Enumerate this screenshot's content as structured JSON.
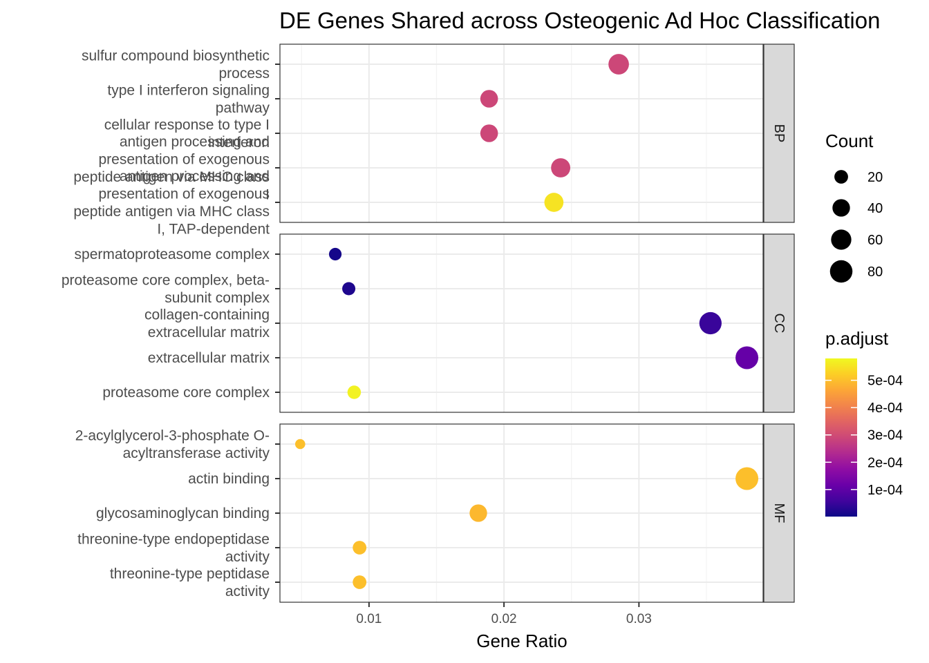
{
  "chart_data": {
    "type": "scatter",
    "title": "DE Genes Shared across Osteogenic Ad Hoc Classification",
    "xlabel": "Gene Ratio",
    "ylabel": "",
    "xlim": [
      0.0034,
      0.0392
    ],
    "x_ticks": [
      0.01,
      0.02,
      0.03
    ],
    "x_tick_labels": [
      "0.01",
      "0.02",
      "0.03"
    ],
    "grid": true,
    "facets": [
      {
        "name": "BP",
        "points": [
          {
            "term": "sulfur compound biosynthetic process",
            "label_lines": [
              "sulfur compound biosynthetic",
              "process"
            ],
            "x": 0.0285,
            "count": 62,
            "p_adjust": 0.00029
          },
          {
            "term": "type I interferon signaling pathway",
            "label_lines": [
              "type I interferon signaling",
              "pathway"
            ],
            "x": 0.0189,
            "count": 41,
            "p_adjust": 0.00029
          },
          {
            "term": "cellular response to type I interferon",
            "label_lines": [
              "cellular response to type I",
              "interferon"
            ],
            "x": 0.0189,
            "count": 41,
            "p_adjust": 0.00029
          },
          {
            "term": "antigen processing and presentation of exogenous peptide antigen via MHC class I",
            "label_lines": [
              "antigen processing and",
              "presentation of exogenous",
              "peptide antigen via MHC class",
              "I"
            ],
            "x": 0.0242,
            "count": 52,
            "p_adjust": 0.00029
          },
          {
            "term": "antigen processing and presentation of exogenous peptide antigen via MHC class I, TAP-dependent",
            "label_lines": [
              "antigen processing and",
              "presentation of exogenous",
              "peptide antigen via MHC class",
              "I, TAP-dependent"
            ],
            "x": 0.0237,
            "count": 51,
            "p_adjust": 0.00055
          }
        ]
      },
      {
        "name": "CC",
        "points": [
          {
            "term": "spermatoproteasome complex",
            "label_lines": [
              "spermatoproteasome complex"
            ],
            "x": 0.0075,
            "count": 16,
            "p_adjust": 1e-05
          },
          {
            "term": "proteasome core complex, beta-subunit complex",
            "label_lines": [
              "proteasome core complex, beta-",
              "subunit complex"
            ],
            "x": 0.0085,
            "count": 18,
            "p_adjust": 2e-05
          },
          {
            "term": "collagen-containing extracellular matrix",
            "label_lines": [
              "collagen-containing",
              "extracellular matrix"
            ],
            "x": 0.0353,
            "count": 78,
            "p_adjust": 5e-05
          },
          {
            "term": "extracellular matrix",
            "label_lines": [
              "extracellular matrix"
            ],
            "x": 0.038,
            "count": 83,
            "p_adjust": 0.00011
          },
          {
            "term": "proteasome core complex",
            "label_lines": [
              "proteasome core complex"
            ],
            "x": 0.0089,
            "count": 19,
            "p_adjust": 0.00057
          }
        ]
      },
      {
        "name": "MF",
        "points": [
          {
            "term": "2-acylglycerol-3-phosphate O-acyltransferase activity",
            "label_lines": [
              "2-acylglycerol-3-phosphate O-",
              "acyltransferase activity"
            ],
            "x": 0.0049,
            "count": 10,
            "p_adjust": 0.0005
          },
          {
            "term": "actin binding",
            "label_lines": [
              "actin binding"
            ],
            "x": 0.038,
            "count": 83,
            "p_adjust": 0.0005
          },
          {
            "term": "glycosaminoglycan binding",
            "label_lines": [
              "glycosaminoglycan binding"
            ],
            "x": 0.0181,
            "count": 40,
            "p_adjust": 0.00049
          },
          {
            "term": "threonine-type endopeptidase activity",
            "label_lines": [
              "threonine-type endopeptidase",
              "activity"
            ],
            "x": 0.0093,
            "count": 20,
            "p_adjust": 0.0005
          },
          {
            "term": "threonine-type peptidase activity",
            "label_lines": [
              "threonine-type peptidase",
              "activity"
            ],
            "x": 0.0093,
            "count": 20,
            "p_adjust": 0.0005
          }
        ]
      }
    ],
    "legend_size": {
      "title": "Count",
      "values": [
        20,
        40,
        60,
        80
      ],
      "labels": [
        "20",
        "40",
        "60",
        "80"
      ]
    },
    "legend_color": {
      "title": "p.adjust",
      "min": 1e-06,
      "max": 0.00058,
      "ticks": [
        0.0001,
        0.0002,
        0.0003,
        0.0004,
        0.0005
      ],
      "labels": [
        "1e-04",
        "2e-04",
        "3e-04",
        "4e-04",
        "5e-04"
      ],
      "colormap": "plasma"
    },
    "legend_position": "right"
  }
}
